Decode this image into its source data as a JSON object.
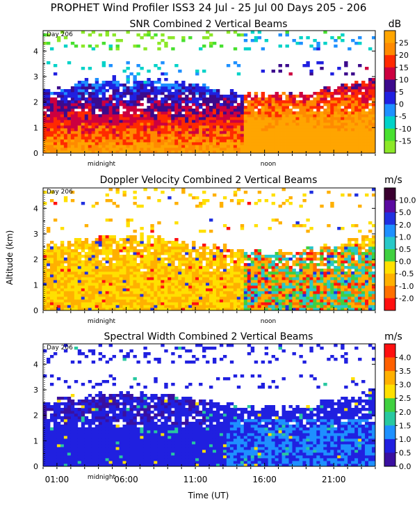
{
  "figure": {
    "title": "PROPHET Wind Profiler ISS3  24 Jul - 25 Jul 00 Days 205 - 206",
    "ylabel": "Altitude (km)",
    "xlabel": "Time (UT)",
    "day_marker": "Day 206",
    "midnight_label": "midnight",
    "noon_label": "noon"
  },
  "chart_data": [
    {
      "type": "heatmap",
      "title": "SNR Combined 2 Vertical Beams",
      "unit": "dB",
      "ylim": [
        0,
        4.8
      ],
      "yticks": [
        "0",
        "1",
        "2",
        "3",
        "4"
      ],
      "xlim_hours": [
        0,
        24
      ],
      "colorbar_labels": [
        "25",
        "20",
        "15",
        "10",
        "5",
        "0",
        "-5",
        "-10",
        "-15"
      ],
      "colorbar_colors": [
        "#ffa500",
        "#ff8a00",
        "#ff2a00",
        "#cc0040",
        "#3c0a8c",
        "#2020e0",
        "#1e90ff",
        "#00d2c8",
        "#48e030",
        "#8ce828"
      ]
    },
    {
      "type": "heatmap",
      "title": "Doppler Velocity Combined 2 Vertical Beams",
      "unit": "m/s",
      "ylim": [
        0,
        4.8
      ],
      "yticks": [
        "0",
        "1",
        "2",
        "3",
        "4"
      ],
      "xlim_hours": [
        0,
        24
      ],
      "colorbar_labels": [
        "10.0",
        "5.0",
        "2.0",
        "1.0",
        "0.5",
        "0.0",
        "-0.5",
        "-1.0",
        "-2.0"
      ],
      "colorbar_colors": [
        "#3a0030",
        "#5a0aa0",
        "#2030e0",
        "#1e90ff",
        "#28c8c8",
        "#40d040",
        "#ffe000",
        "#ffb000",
        "#ff7000",
        "#ff1010"
      ]
    },
    {
      "type": "heatmap",
      "title": "Spectral Width Combined 2 Vertical Beams",
      "unit": "m/s",
      "ylim": [
        0,
        4.8
      ],
      "yticks": [
        "0",
        "1",
        "2",
        "3",
        "4"
      ],
      "xlim_hours": [
        0,
        24
      ],
      "xticks": [
        "01:00",
        "06:00",
        "11:00",
        "16:00",
        "21:00"
      ],
      "colorbar_labels": [
        "4.0",
        "3.5",
        "3.0",
        "2.5",
        "2.0",
        "1.5",
        "1.0",
        "0.5",
        "0.0"
      ],
      "colorbar_colors": [
        "#ff1010",
        "#ff6000",
        "#ffb000",
        "#ffe000",
        "#40d040",
        "#28c8a0",
        "#1e90ff",
        "#2020e0",
        "#3a10a0"
      ]
    }
  ]
}
